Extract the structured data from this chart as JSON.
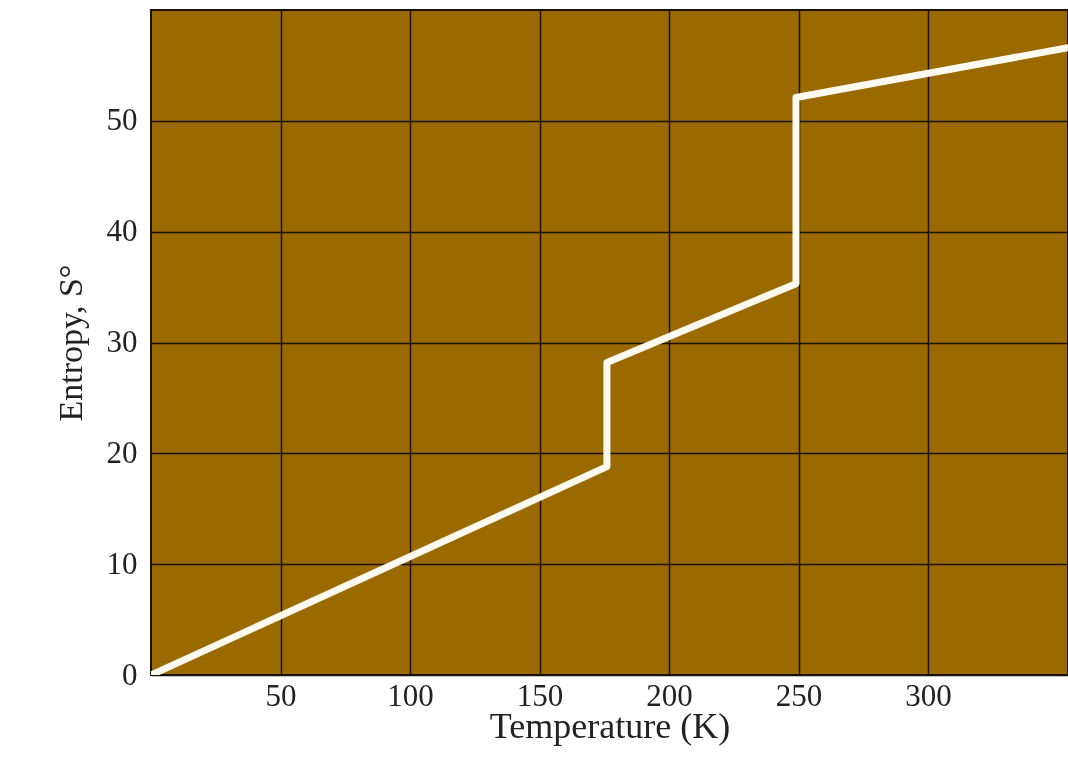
{
  "chart_data": {
    "type": "line",
    "xlabel": "Temperature (K)",
    "ylabel": "Entropy, S°",
    "xlim": [
      0,
      354
    ],
    "ylim": [
      0,
      60
    ],
    "xticks": [
      50,
      100,
      150,
      200,
      250,
      300
    ],
    "yticks": [
      0,
      10,
      20,
      30,
      40,
      50
    ],
    "grid": true,
    "series": [
      {
        "color": "#fffaf0",
        "x": [
          0,
          176,
          176,
          249,
          249,
          354
        ],
        "values": [
          0,
          18.8,
          28.2,
          35.3,
          52.1,
          56.6
        ]
      }
    ]
  }
}
